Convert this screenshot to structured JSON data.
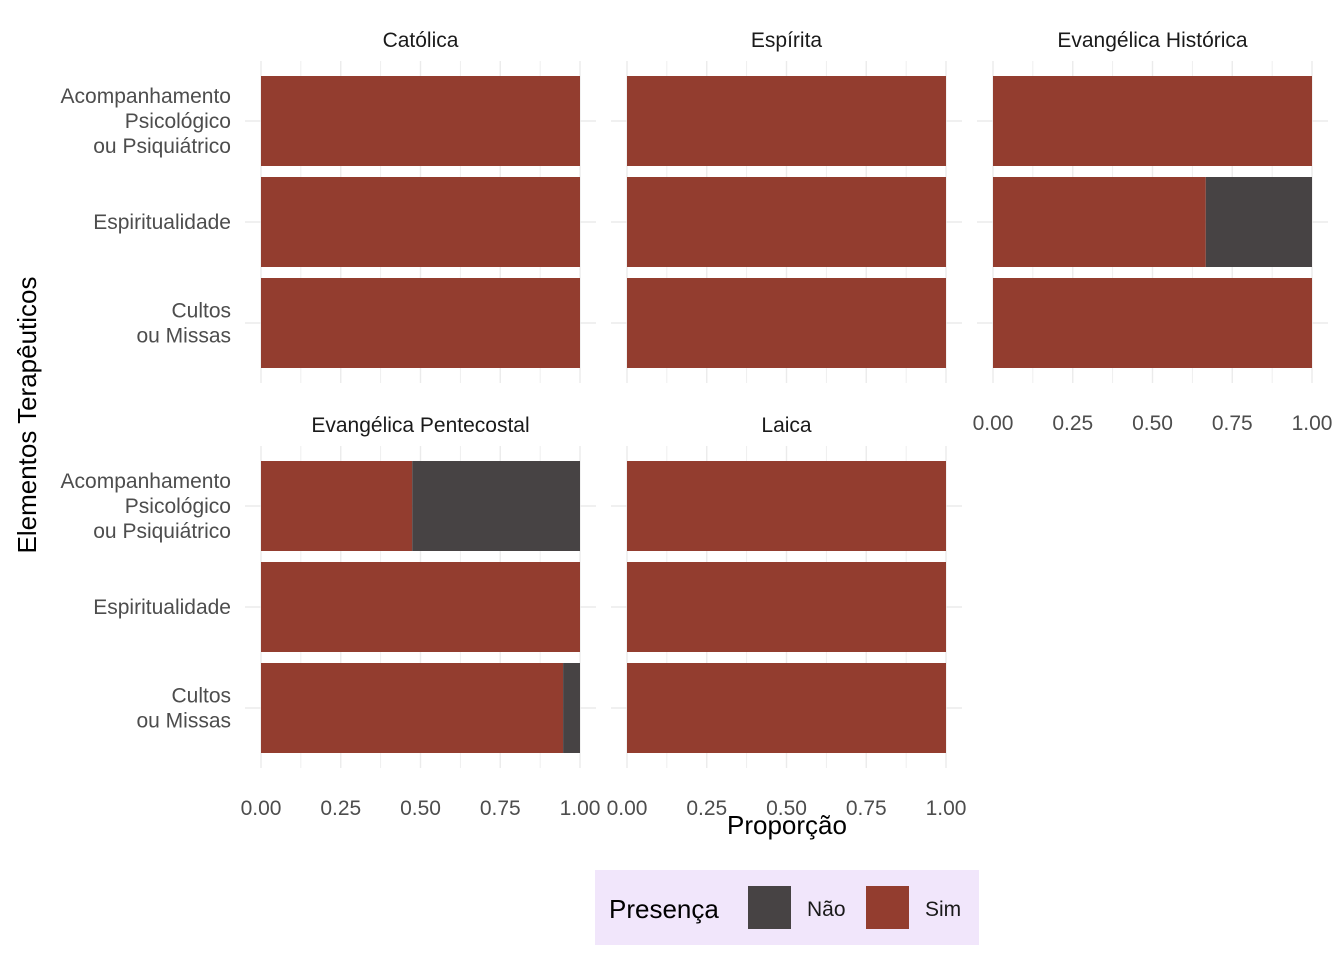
{
  "chart_data": {
    "type": "bar",
    "orientation": "horizontal",
    "stacked": true,
    "xlabel": "Proporção",
    "ylabel": "Elementos Terapêuticos",
    "xlim": [
      0,
      1
    ],
    "xticks": [
      "0.00",
      "0.25",
      "0.50",
      "0.75",
      "1.00"
    ],
    "grid": true,
    "categories": [
      [
        "Acompanhamento",
        "Psicológico",
        "ou Psiquiátrico"
      ],
      [
        "Espiritualidade"
      ],
      [
        "Cultos",
        "ou Missas"
      ]
    ],
    "panels": [
      {
        "name": "Católica",
        "sim": [
          1.0,
          1.0,
          1.0
        ],
        "nao": [
          0.0,
          0.0,
          0.0
        ]
      },
      {
        "name": "Espírita",
        "sim": [
          1.0,
          1.0,
          1.0
        ],
        "nao": [
          0.0,
          0.0,
          0.0
        ]
      },
      {
        "name": "Evangélica Histórica",
        "sim": [
          1.0,
          0.667,
          1.0
        ],
        "nao": [
          0.0,
          0.333,
          0.0
        ]
      },
      {
        "name": "Evangélica Pentecostal",
        "sim": [
          0.474,
          1.0,
          0.947
        ],
        "nao": [
          0.526,
          0.0,
          0.053
        ]
      },
      {
        "name": "Laica",
        "sim": [
          1.0,
          1.0,
          1.0
        ],
        "nao": [
          0.0,
          0.0,
          0.0
        ]
      }
    ],
    "legend": {
      "title": "Presença",
      "position": "bottom",
      "background": "#f1e6fb",
      "items": [
        {
          "label": "Não",
          "color": "#474344"
        },
        {
          "label": "Sim",
          "color": "#933d2f"
        }
      ]
    }
  }
}
